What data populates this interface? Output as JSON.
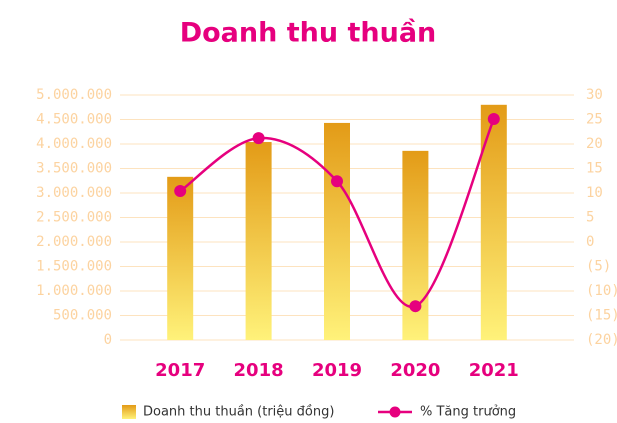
{
  "chart_data": {
    "type": "bar",
    "title": "Doanh thu thuần",
    "categories": [
      "2017",
      "2018",
      "2019",
      "2020",
      "2021"
    ],
    "series": [
      {
        "name": "Doanh thu thuần (triệu đồng)",
        "type": "bar",
        "color": "#e8a317",
        "values": [
          3330000,
          4040000,
          4430000,
          3860000,
          4800000
        ]
      },
      {
        "name": "% Tăng trưởng",
        "type": "line",
        "axis": "y2",
        "color": "#e6007e",
        "values": [
          10.4,
          21.2,
          12.4,
          -13.1,
          25.1
        ]
      }
    ],
    "ylim": [
      0,
      5000000
    ],
    "yticks": [
      0,
      {
        "value": 500000,
        "label": "500.000"
      },
      {
        "value": 1000000,
        "label": "1.000.000"
      },
      {
        "value": 1500000,
        "label": "1.500.000"
      },
      {
        "value": 2000000,
        "label": "2.000.000"
      },
      {
        "value": 2500000,
        "label": "2.500.000"
      },
      {
        "value": 3000000,
        "label": "3.000.000"
      },
      {
        "value": 3500000,
        "label": "3.500.000"
      },
      {
        "value": 4000000,
        "label": "4.000.000"
      },
      {
        "value": 4500000,
        "label": "4.500.000"
      },
      {
        "value": 5000000,
        "label": "5.000.000"
      }
    ],
    "y2lim": [
      -20,
      30
    ],
    "y2ticks": [
      {
        "value": -20,
        "label": "(20)"
      },
      {
        "value": -15,
        "label": "(15)"
      },
      {
        "value": -10,
        "label": "(10)"
      },
      {
        "value": -5,
        "label": "(5)"
      },
      0,
      5,
      10,
      15,
      20,
      25,
      30
    ],
    "grid": true,
    "legend": "bottom"
  }
}
